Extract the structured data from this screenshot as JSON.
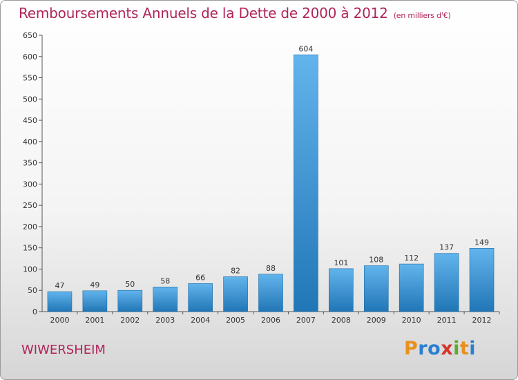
{
  "title": "Remboursements Annuels de la Dette de 2000 à 2012",
  "unit": "(en milliers d'€)",
  "town": "WIWERSHEIM",
  "logo": {
    "text": "Proxiti",
    "letters": [
      {
        "char": "P",
        "color": "#e8901e"
      },
      {
        "char": "r",
        "color": "#2a7fd0"
      },
      {
        "char": "o",
        "color": "#2a7fd0"
      },
      {
        "char": "x",
        "color": "#d6322e"
      },
      {
        "char": "i",
        "color": "#5aac2c"
      },
      {
        "char": "t",
        "color": "#e8901e"
      },
      {
        "char": "i",
        "color": "#2a7fd0"
      }
    ]
  },
  "colors": {
    "accent": "#b0245a",
    "bar_top": "#62b4ec",
    "bar_bottom": "#2176b6"
  },
  "chart_data": {
    "type": "bar",
    "title": "Remboursements Annuels de la Dette de 2000 à 2012",
    "subtitle": "(en milliers d'€)",
    "categories": [
      "2000",
      "2001",
      "2002",
      "2003",
      "2004",
      "2005",
      "2006",
      "2007",
      "2008",
      "2009",
      "2010",
      "2011",
      "2012"
    ],
    "values": [
      47,
      49,
      50,
      58,
      66,
      82,
      88,
      604,
      101,
      108,
      112,
      137,
      149
    ],
    "ylim": [
      0,
      650
    ],
    "yticks": [
      0,
      50,
      100,
      150,
      200,
      250,
      300,
      350,
      400,
      450,
      500,
      550,
      600,
      650
    ],
    "grid": false,
    "xlabel": "",
    "ylabel": ""
  }
}
